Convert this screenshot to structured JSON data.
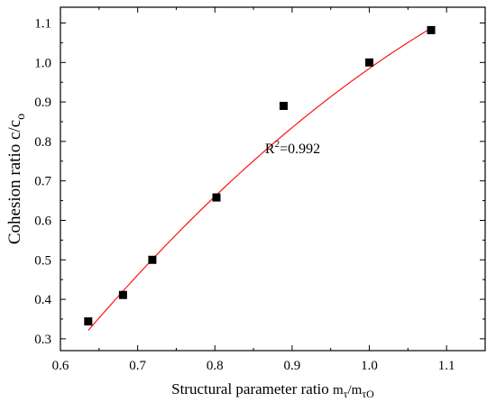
{
  "chart_data": {
    "type": "scatter",
    "xlabel": {
      "text": "Structural parameter ratio",
      "symbol": "m",
      "num_sub": "τ",
      "slash": "/",
      "den_sub": "τO"
    },
    "ylabel": {
      "text": "Cohesion ratio c/c",
      "sub": "o"
    },
    "xlim": [
      0.6,
      1.15
    ],
    "ylim": [
      0.27,
      1.14
    ],
    "x_ticks": [
      0.6,
      0.7,
      0.8,
      0.9,
      1.0,
      1.1
    ],
    "x_tick_labels": [
      "0.6",
      "0.7",
      "0.8",
      "0.9",
      "1.0",
      "1.1"
    ],
    "y_ticks": [
      0.3,
      0.4,
      0.5,
      0.6,
      0.7,
      0.8,
      0.9,
      1.0,
      1.1
    ],
    "y_tick_labels": [
      "0.3",
      "0.4",
      "0.5",
      "0.6",
      "0.7",
      "0.8",
      "0.9",
      "1.0",
      "1.1"
    ],
    "grid": false,
    "series": [
      {
        "kind": "points",
        "marker": "square",
        "color": "#000000",
        "x": [
          0.636,
          0.681,
          0.719,
          0.802,
          0.889,
          1.0,
          1.08
        ],
        "y": [
          0.344,
          0.411,
          0.5,
          0.658,
          0.89,
          1.0,
          1.082
        ]
      },
      {
        "kind": "fit-line",
        "color": "#ff0000",
        "x_range": [
          0.636,
          1.08
        ],
        "fit_points": [
          [
            0.636,
            0.321
          ],
          [
            0.9,
            0.835
          ],
          [
            1.08,
            1.087
          ]
        ]
      }
    ],
    "annotations": [
      {
        "text": "R",
        "sup": "2",
        "rest": "=0.992",
        "x": 0.865,
        "y": 0.77
      }
    ]
  }
}
